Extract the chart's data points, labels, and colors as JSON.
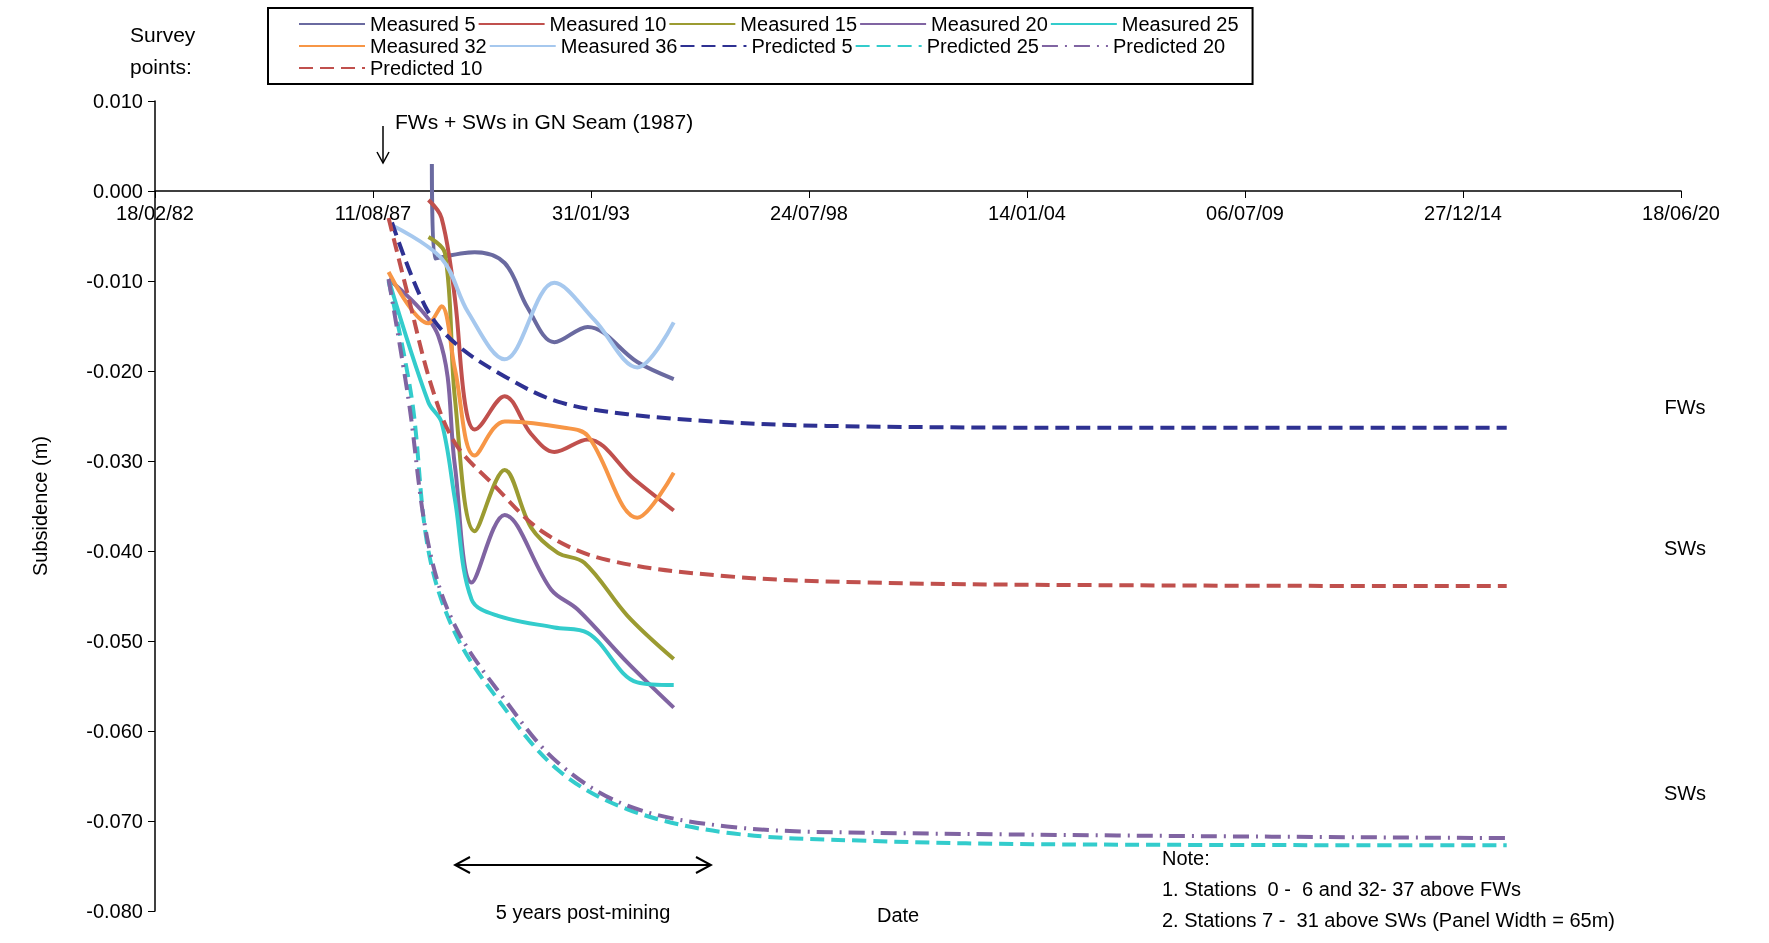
{
  "chart_data": {
    "type": "line",
    "xlabel": "Date",
    "ylabel": "Subsidence (m)",
    "legend_title": "Survey points:",
    "legend": "top",
    "grid": false,
    "marker": "none",
    "xlim": [
      "1982-02-18",
      "2020-06-18"
    ],
    "xticks": [
      {
        "value": "1982-02-18",
        "label": "18/02/82"
      },
      {
        "value": "1987-08-11",
        "label": "11/08/87"
      },
      {
        "value": "1993-01-31",
        "label": "31/01/93"
      },
      {
        "value": "1998-07-24",
        "label": "24/07/98"
      },
      {
        "value": "2004-01-14",
        "label": "14/01/04"
      },
      {
        "value": "2009-07-06",
        "label": "06/07/09"
      },
      {
        "value": "2014-12-27",
        "label": "27/12/14"
      },
      {
        "value": "2020-06-18",
        "label": "18/06/20"
      }
    ],
    "ylim": [
      -0.08,
      0.01
    ],
    "yticks": [
      {
        "value": -0.08,
        "label": "-0.080"
      },
      {
        "value": -0.07,
        "label": "-0.070"
      },
      {
        "value": -0.06,
        "label": "-0.060"
      },
      {
        "value": -0.05,
        "label": "-0.050"
      },
      {
        "value": -0.04,
        "label": "-0.040"
      },
      {
        "value": -0.03,
        "label": "-0.030"
      },
      {
        "value": -0.02,
        "label": "-0.020"
      },
      {
        "value": -0.01,
        "label": "-0.010"
      },
      {
        "value": 0,
        "label": "0.000"
      },
      {
        "value": 0.01,
        "label": "0.010"
      }
    ],
    "series": [
      {
        "name": "Measured 5",
        "color": "#6a6aa0",
        "line_style": "solid",
        "x": [
          "1989-02",
          "1989-03",
          "1990-03",
          "1990-12",
          "1991-07",
          "1992-03",
          "1993-01",
          "1994-04",
          "1995-03"
        ],
        "values": [
          0.003,
          -0.0075,
          -0.0068,
          -0.008,
          -0.013,
          -0.0168,
          -0.0151,
          -0.019,
          -0.0209
        ]
      },
      {
        "name": "Measured 10",
        "color": "#c0504d",
        "line_style": "solid",
        "x": [
          "1989-01",
          "1989-05",
          "1989-09",
          "1989-12",
          "1990-03",
          "1990-12",
          "1991-08",
          "1992-03",
          "1993-01",
          "1994-03",
          "1995-03"
        ],
        "values": [
          -0.001,
          -0.003,
          -0.012,
          -0.0235,
          -0.0265,
          -0.0228,
          -0.027,
          -0.029,
          -0.0276,
          -0.032,
          -0.0355
        ]
      },
      {
        "name": "Measured 15",
        "color": "#9b9b31",
        "line_style": "solid",
        "x": [
          "1989-01",
          "1989-06",
          "1989-09",
          "1990-03",
          "1990-12",
          "1991-08",
          "1992-04",
          "1992-12",
          "1994-01",
          "1995-03"
        ],
        "values": [
          -0.0051,
          -0.0069,
          -0.0231,
          -0.0378,
          -0.031,
          -0.0374,
          -0.0402,
          -0.0413,
          -0.0472,
          -0.052
        ]
      },
      {
        "name": "Measured 20",
        "color": "#8064a2",
        "line_style": "solid",
        "x": [
          "1988-01",
          "1989-04",
          "1989-09",
          "1990-02",
          "1990-12",
          "1992-02",
          "1992-10",
          "1994-01",
          "1995-03"
        ],
        "values": [
          -0.0098,
          -0.0161,
          -0.0306,
          -0.0435,
          -0.036,
          -0.0443,
          -0.0465,
          -0.0524,
          -0.0574
        ]
      },
      {
        "name": "Measured 25",
        "color": "#33cccc",
        "line_style": "solid",
        "x": [
          "1988-01",
          "1989-01",
          "1989-05",
          "1989-09",
          "1990-02",
          "1990-10",
          "1992-03",
          "1993-01",
          "1994-04",
          "1995-03"
        ],
        "values": [
          -0.0098,
          -0.0235,
          -0.0257,
          -0.0343,
          -0.0454,
          -0.0472,
          -0.0485,
          -0.0491,
          -0.0546,
          -0.0549
        ]
      },
      {
        "name": "Measured 32",
        "color": "#f79646",
        "line_style": "solid",
        "x": [
          "1988-01",
          "1989-01",
          "1989-05",
          "1989-09",
          "1990-03",
          "1990-12",
          "1992-06",
          "1993-01",
          "1994-04",
          "1995-03"
        ],
        "values": [
          -0.009,
          -0.0147,
          -0.0128,
          -0.0198,
          -0.0294,
          -0.0256,
          -0.0263,
          -0.0272,
          -0.0363,
          -0.0313
        ]
      },
      {
        "name": "Measured 36",
        "color": "#a6c8ee",
        "line_style": "solid",
        "x": [
          "1988-02",
          "1989-05",
          "1990-01",
          "1990-12",
          "1992-03",
          "1993-03",
          "1994-04",
          "1995-03"
        ],
        "values": [
          -0.0038,
          -0.0075,
          -0.0135,
          -0.0187,
          -0.0102,
          -0.0143,
          -0.0196,
          -0.0146
        ]
      },
      {
        "name": "Predicted 5",
        "color": "#2e3192",
        "line_style": "dashed",
        "x": [
          "1988-02",
          "1988-12",
          "1989-09",
          "1990-12",
          "1992-04",
          "1994-01",
          "1996-07",
          "1999-01",
          "2005-01",
          "2016-02"
        ],
        "values": [
          -0.0035,
          -0.0128,
          -0.0169,
          -0.0206,
          -0.0234,
          -0.0248,
          -0.0257,
          -0.0261,
          -0.0263,
          -0.0263
        ]
      },
      {
        "name": "Predicted 25",
        "color": "#33cccc",
        "line_style": "dashed",
        "x": [
          "1988-01",
          "1988-08",
          "1989-01",
          "1989-09",
          "1990-10",
          "1992-04",
          "1994-01",
          "1996-07",
          "2000-01",
          "2005-01",
          "2016-02"
        ],
        "values": [
          -0.01,
          -0.0231,
          -0.04,
          -0.0491,
          -0.0565,
          -0.0643,
          -0.0687,
          -0.0713,
          -0.0722,
          -0.0726,
          -0.0727
        ]
      },
      {
        "name": "Predicted 20",
        "color": "#8064a2",
        "line_style": "dashdot",
        "x": [
          "1988-01",
          "1988-07",
          "1989-01",
          "1989-09",
          "1990-12",
          "1992-04",
          "1994-01",
          "1996-07",
          "2000-01",
          "2016-02"
        ],
        "values": [
          -0.0098,
          -0.0231,
          -0.0393,
          -0.0483,
          -0.0565,
          -0.0635,
          -0.0683,
          -0.0706,
          -0.0713,
          -0.0719
        ]
      },
      {
        "name": "Predicted 10",
        "color": "#c0504d",
        "line_style": "dashed",
        "x": [
          "1988-01",
          "1988-07",
          "1989-02",
          "1989-09",
          "1990-08",
          "1991-12",
          "1993-07",
          "1996-07",
          "2000-01",
          "2006-01",
          "2016-02"
        ],
        "values": [
          -0.003,
          -0.0118,
          -0.0218,
          -0.028,
          -0.0324,
          -0.038,
          -0.041,
          -0.0428,
          -0.0435,
          -0.0438,
          -0.0439
        ]
      }
    ],
    "annotations": [
      "FWs + SWs in GN Seam (1987)",
      "FWs",
      "SWs",
      "SWs",
      "5 years post-mining",
      "Note:",
      "1. Stations  0 -  6 and 32- 37 above FWs",
      "2. Stations 7 -  31 above SWs (Panel Width = 65m)"
    ]
  }
}
